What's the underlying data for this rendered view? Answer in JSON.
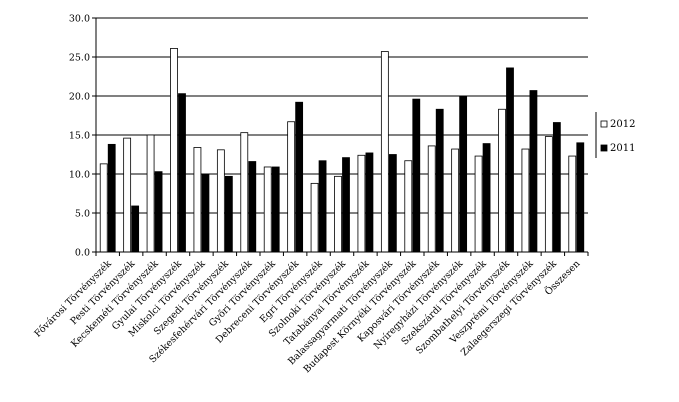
{
  "chart_data": {
    "type": "bar",
    "title": "",
    "xlabel": "",
    "ylabel": "",
    "ylim": [
      0,
      30
    ],
    "yticks": [
      "0.0",
      "5.0",
      "10.0",
      "15.0",
      "20.0",
      "25.0",
      "30.0"
    ],
    "grid": true,
    "legend_position": "right",
    "categories": [
      "Fővárosi Törvényszék",
      "Pesti Törvényszék",
      "Kecskeméti Törvényszék",
      "Gyulai Törvényszék",
      "Miskolci Törvényszék",
      "Szegedi Törvényszék",
      "Székesfehérvári Törvényszék",
      "Győri Törvényszék",
      "Debreceni Törvényszék",
      "Egri Törvényszék",
      "Szolnoki Törvényszék",
      "Tatabányai Törvényszék",
      "Balassagyarmati Törvényszék",
      "Budapest Környéki Törvényszék",
      "Kaposvári Törvényszék",
      "Nyíregyházi Törvényszék",
      "Szekszárdi Törvényszék",
      "Szombathelyi Törvényszék",
      "Veszprémi Törvényszék",
      "Zalaegerszegi Törvényszék",
      "Összesen"
    ],
    "series": [
      {
        "name": "2012",
        "color": "#ffffff",
        "values": [
          11.3,
          14.6,
          15.0,
          26.1,
          13.4,
          13.1,
          15.3,
          10.9,
          16.7,
          8.8,
          9.7,
          12.4,
          25.7,
          11.7,
          13.6,
          13.2,
          12.3,
          18.3,
          13.2,
          14.8,
          12.3
        ]
      },
      {
        "name": "2011",
        "color": "#000000",
        "values": [
          13.8,
          5.9,
          10.3,
          20.3,
          10.0,
          9.7,
          11.6,
          10.9,
          19.2,
          11.7,
          12.1,
          12.7,
          12.5,
          19.6,
          18.3,
          20.0,
          13.9,
          23.6,
          20.7,
          16.6,
          14.0
        ]
      }
    ]
  }
}
